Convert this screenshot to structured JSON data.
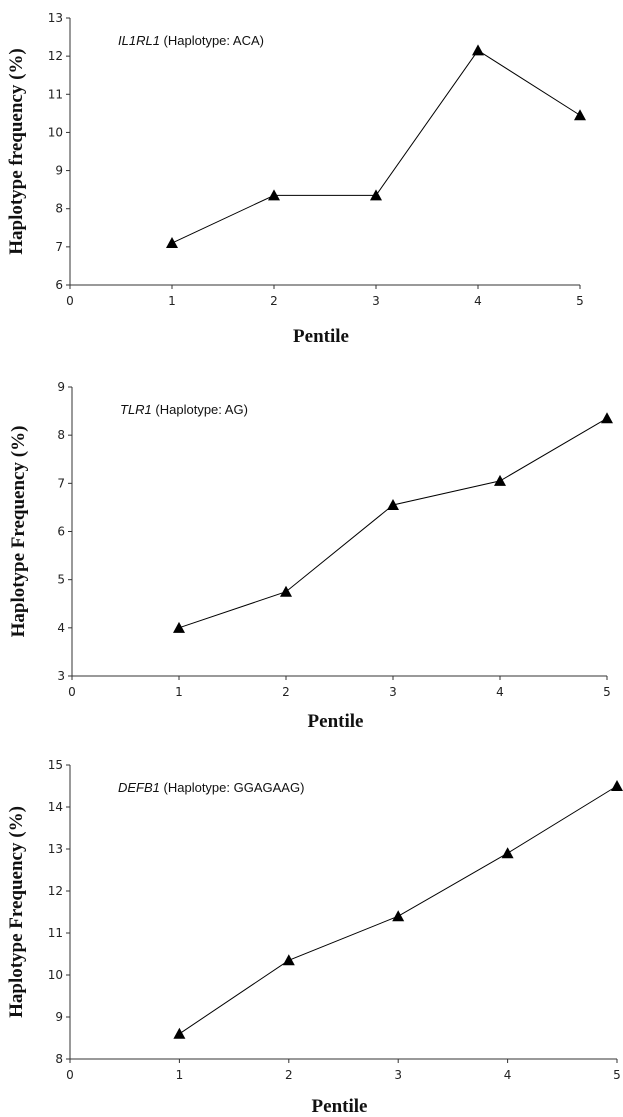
{
  "figure": {
    "panel_count": 3
  },
  "chart_data": [
    {
      "type": "line",
      "gene": "IL1RL1",
      "annotation_suffix": " (Haplotype: ACA)",
      "xlabel": "Pentile",
      "ylabel": "Haplotype frequency (%)",
      "x": [
        1,
        2,
        3,
        4,
        5
      ],
      "series": [
        {
          "values": [
            7.1,
            8.35,
            8.35,
            12.15,
            10.45
          ]
        }
      ],
      "xlim": [
        0,
        5
      ],
      "ylim": [
        6,
        13
      ],
      "xticks": [
        0,
        1,
        2,
        3,
        4,
        5
      ],
      "yticks": [
        6,
        7,
        8,
        9,
        10,
        11,
        12,
        13
      ],
      "marker": "triangle",
      "grid": false,
      "color": "#000000"
    },
    {
      "type": "line",
      "gene": "TLR1",
      "annotation_suffix": " (Haplotype: AG)",
      "xlabel": "Pentile",
      "ylabel": "Haplotype Frequency (%)",
      "x": [
        1,
        2,
        3,
        4,
        5
      ],
      "series": [
        {
          "values": [
            4.0,
            4.75,
            6.55,
            7.05,
            8.35
          ]
        }
      ],
      "xlim": [
        0,
        5
      ],
      "ylim": [
        3,
        9
      ],
      "xticks": [
        0,
        1,
        2,
        3,
        4,
        5
      ],
      "yticks": [
        3,
        4,
        5,
        6,
        7,
        8,
        9
      ],
      "marker": "triangle",
      "grid": false,
      "color": "#000000"
    },
    {
      "type": "line",
      "gene": "DEFB1",
      "annotation_suffix": " (Haplotype: GGAGAAG)",
      "xlabel": "Pentile",
      "ylabel": "Haplotype Frequency (%)",
      "x": [
        1,
        2,
        3,
        4,
        5
      ],
      "series": [
        {
          "values": [
            8.6,
            10.35,
            11.4,
            12.9,
            14.5
          ]
        }
      ],
      "xlim": [
        0,
        5
      ],
      "ylim": [
        8,
        15
      ],
      "xticks": [
        0,
        1,
        2,
        3,
        4,
        5
      ],
      "yticks": [
        8,
        9,
        10,
        11,
        12,
        13,
        14,
        15
      ],
      "marker": "triangle",
      "grid": false,
      "color": "#000000"
    }
  ]
}
